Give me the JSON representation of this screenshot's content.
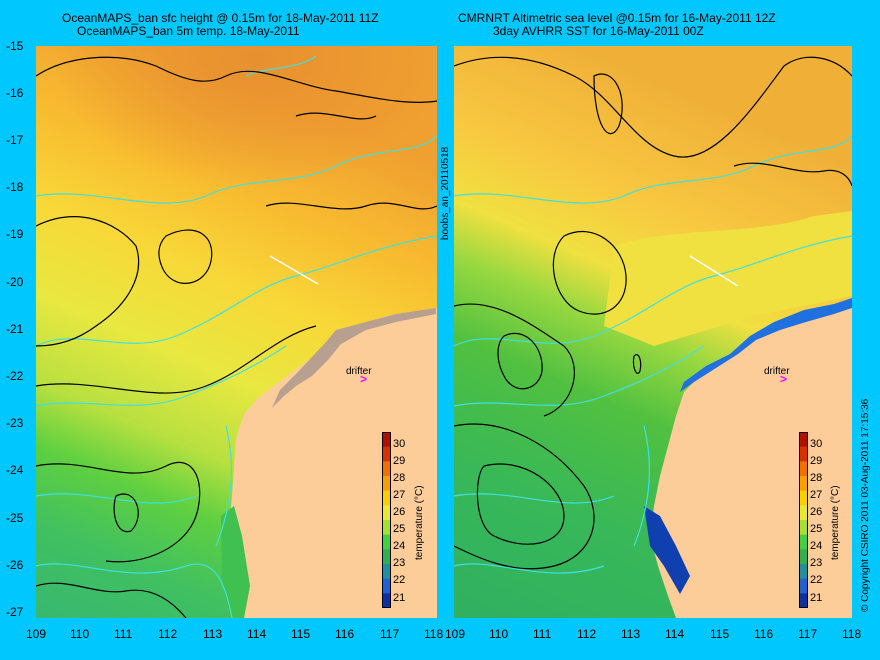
{
  "left_panel": {
    "title_line1": "OceanMAPS_ban sfc height @ 0.15m for 18-May-2011 11Z",
    "title_line2": "OceanMAPS_ban 5m temp. 18-May-2011"
  },
  "right_panel": {
    "title_line1": "CMRNRT Altimetric sea level  @0.15m  for 16-May-2011 12Z",
    "title_line2": "3day AVHRR SST for 16-May-2011 00Z"
  },
  "side_label": "boobs_an_20110518",
  "copyright": "© Copyright CSIRO 2011  03-Aug-2011 17:15:36",
  "drifter_label": "drifter",
  "drifter_marker": ">",
  "lat_ticks": [
    "-15",
    "-16",
    "-17",
    "-18",
    "-19",
    "-20",
    "-21",
    "-22",
    "-23",
    "-24",
    "-25",
    "-26",
    "-27"
  ],
  "lon_ticks": [
    "109",
    "110",
    "111",
    "112",
    "113",
    "114",
    "115",
    "116",
    "117",
    "118"
  ],
  "colorbar": {
    "title": "temperature (°C)",
    "ticks": [
      "30",
      "29",
      "28",
      "27",
      "26",
      "25",
      "24",
      "23",
      "22",
      "21"
    ],
    "colors": [
      "#b01000",
      "#d83000",
      "#f07000",
      "#f8a000",
      "#f8d000",
      "#e8e830",
      "#a8e030",
      "#40d040",
      "#30b050",
      "#2090a0",
      "#2060d0",
      "#1030a0"
    ]
  },
  "colors": {
    "background": "#00c8ff",
    "land": "#fccc99",
    "reef": "#b8a090",
    "contour_black": "#000000",
    "contour_cyan": "#40e0e0",
    "drifter": "#ff00ff"
  }
}
